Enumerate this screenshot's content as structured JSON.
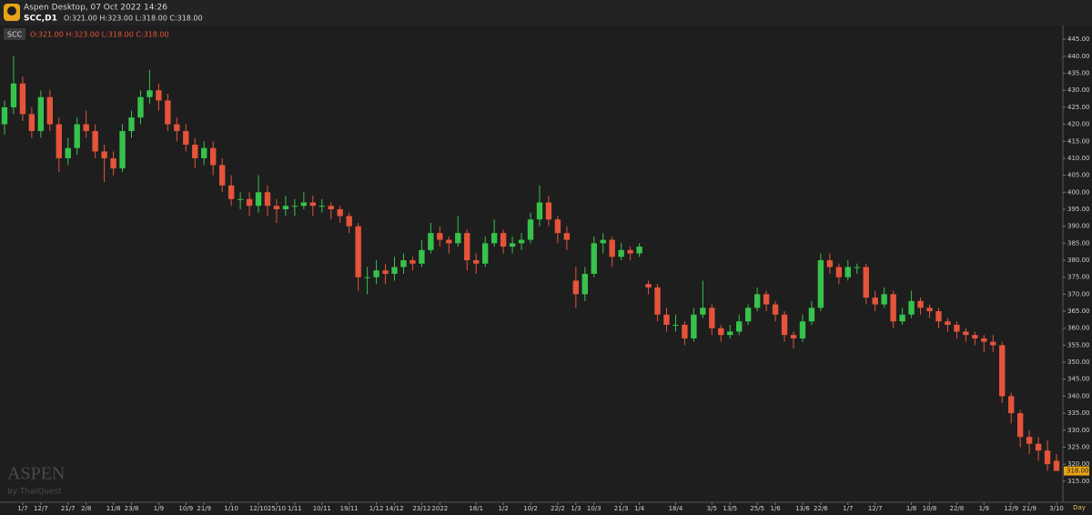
{
  "chart_data": {
    "type": "candlestick",
    "title": "Aspen Desktop, 07 Oct 2022 14:26",
    "symbol_label": "SCC,D1",
    "ohlc_label": "O:321.00 H:323.00 L:318.00 C:318.00",
    "watermark": "ASPEN",
    "watermark_sub": "by ThaiQuest",
    "period": "Day",
    "up_color": "#37c24b",
    "down_color": "#e5543a",
    "current_price": {
      "value": 318,
      "label": "318.00"
    },
    "categories": [
      null,
      null,
      "1/7",
      null,
      "12/7",
      null,
      null,
      "21/7",
      null,
      "2/8",
      null,
      null,
      "11/8",
      null,
      "23/8",
      null,
      null,
      "1/9",
      null,
      null,
      "10/9",
      null,
      "21/9",
      null,
      null,
      "1/10",
      null,
      null,
      "12/10",
      null,
      "25/10",
      null,
      "1/11",
      null,
      null,
      "10/11",
      null,
      null,
      "19/11",
      null,
      null,
      "1/12",
      null,
      "14/12",
      null,
      null,
      "23/12",
      null,
      "2022",
      null,
      null,
      null,
      "18/1",
      null,
      null,
      "1/2",
      null,
      null,
      "10/2",
      null,
      null,
      "22/2",
      null,
      "1/3",
      null,
      "10/3",
      null,
      null,
      "21/3",
      null,
      "1/4",
      null,
      null,
      null,
      "18/4",
      null,
      null,
      null,
      "3/5",
      null,
      "13/5",
      null,
      null,
      "25/5",
      null,
      "1/6",
      null,
      null,
      "13/6",
      null,
      "22/6",
      null,
      null,
      "1/7",
      null,
      null,
      "12/7",
      null,
      null,
      null,
      "1/8",
      null,
      "10/8",
      null,
      null,
      "22/8",
      null,
      null,
      "1/9",
      null,
      null,
      "12/9",
      null,
      "21/9",
      null,
      null,
      "3/10"
    ],
    "series": [
      {
        "name": "SCC",
        "open": [
          420,
          425,
          432,
          423,
          418,
          428,
          420,
          410,
          413,
          420,
          418,
          412,
          410,
          407,
          418,
          422,
          428,
          430,
          427,
          420,
          418,
          414,
          410,
          413,
          408,
          402,
          398,
          398,
          396,
          400,
          396,
          395,
          396,
          396,
          397,
          396,
          396,
          395,
          393,
          390,
          375,
          375,
          377,
          376,
          378,
          380,
          379,
          383,
          388,
          386,
          385,
          388,
          380,
          379,
          385,
          388,
          384,
          385,
          386,
          392,
          397,
          392,
          388,
          374,
          370,
          376,
          385,
          386,
          381,
          383,
          382,
          373,
          372,
          364,
          361,
          361,
          357,
          364,
          366,
          360,
          358,
          359,
          362,
          366,
          370,
          367,
          364,
          358,
          357,
          362,
          366,
          380,
          378,
          375,
          378,
          378,
          369,
          367,
          370,
          362,
          364,
          368,
          366,
          365,
          362,
          361,
          359,
          358,
          357,
          356,
          355,
          340,
          335,
          328,
          326,
          324,
          321
        ],
        "high": [
          427,
          440,
          434,
          425,
          430,
          430,
          422,
          416,
          422,
          424,
          420,
          414,
          412,
          420,
          424,
          430,
          436,
          432,
          429,
          422,
          420,
          416,
          415,
          415,
          410,
          405,
          400,
          400,
          405,
          402,
          398,
          399,
          398,
          400,
          399,
          398,
          397,
          396,
          394,
          391,
          378,
          380,
          379,
          381,
          382,
          381,
          386,
          391,
          390,
          387,
          393,
          389,
          382,
          387,
          392,
          389,
          387,
          388,
          394,
          402,
          399,
          393,
          390,
          378,
          378,
          387,
          388,
          387,
          385,
          384,
          385,
          374,
          373,
          366,
          364,
          362,
          366,
          374,
          367,
          361,
          361,
          364,
          367,
          372,
          371,
          368,
          365,
          359,
          364,
          368,
          382,
          382,
          379,
          380,
          379,
          379,
          371,
          372,
          371,
          366,
          371,
          369,
          367,
          366,
          363,
          362,
          360,
          359,
          358,
          358,
          356,
          341,
          336,
          330,
          328,
          327,
          323
        ],
        "low": [
          417,
          423,
          421,
          416,
          416,
          418,
          406,
          408,
          411,
          416,
          410,
          403,
          405,
          406,
          416,
          420,
          426,
          424,
          418,
          415,
          412,
          407,
          408,
          405,
          400,
          396,
          395,
          393,
          394,
          393,
          391,
          393,
          393,
          395,
          393,
          394,
          392,
          391,
          388,
          371,
          370,
          373,
          373,
          374,
          376,
          377,
          378,
          382,
          384,
          382,
          384,
          377,
          376,
          378,
          384,
          382,
          382,
          383,
          385,
          390,
          390,
          385,
          383,
          366,
          368,
          375,
          382,
          378,
          380,
          380,
          381,
          370,
          362,
          359,
          359,
          355,
          356,
          363,
          358,
          356,
          357,
          358,
          361,
          365,
          365,
          362,
          356,
          354,
          356,
          361,
          365,
          376,
          373,
          374,
          376,
          367,
          365,
          366,
          360,
          361,
          363,
          364,
          363,
          360,
          359,
          357,
          356,
          355,
          353,
          353,
          338,
          332,
          325,
          323,
          321,
          318,
          318
        ],
        "close": [
          425,
          432,
          423,
          418,
          428,
          420,
          410,
          413,
          420,
          418,
          412,
          410,
          407,
          418,
          422,
          428,
          430,
          427,
          420,
          418,
          414,
          410,
          413,
          408,
          402,
          398,
          398,
          396,
          400,
          396,
          395,
          396,
          396,
          397,
          396,
          396,
          395,
          393,
          390,
          375,
          375,
          377,
          376,
          378,
          380,
          379,
          383,
          388,
          386,
          385,
          388,
          380,
          379,
          385,
          388,
          384,
          385,
          386,
          392,
          397,
          392,
          388,
          386,
          370,
          376,
          385,
          386,
          381,
          383,
          382,
          384,
          372,
          364,
          361,
          361,
          357,
          364,
          366,
          360,
          358,
          359,
          362,
          366,
          370,
          367,
          364,
          358,
          357,
          362,
          366,
          380,
          378,
          375,
          378,
          378,
          369,
          367,
          370,
          362,
          364,
          368,
          366,
          365,
          362,
          361,
          359,
          358,
          357,
          356,
          355,
          340,
          335,
          328,
          326,
          324,
          320,
          318
        ]
      }
    ],
    "ylim": [
      312,
      448
    ],
    "yticks": [
      {
        "value": 445,
        "label": "445.00"
      },
      {
        "value": 440,
        "label": "440.00"
      },
      {
        "value": 435,
        "label": "435.00"
      },
      {
        "value": 430,
        "label": "430.00"
      },
      {
        "value": 425,
        "label": "425.00"
      },
      {
        "value": 420,
        "label": "420.00"
      },
      {
        "value": 415,
        "label": "415.00"
      },
      {
        "value": 410,
        "label": "410.00"
      },
      {
        "value": 405,
        "label": "405.00"
      },
      {
        "value": 400,
        "label": "400.00"
      },
      {
        "value": 395,
        "label": "395.00"
      },
      {
        "value": 390,
        "label": "390.00"
      },
      {
        "value": 385,
        "label": "385.00"
      },
      {
        "value": 380,
        "label": "380.00"
      },
      {
        "value": 375,
        "label": "375.00"
      },
      {
        "value": 370,
        "label": "370.00"
      },
      {
        "value": 365,
        "label": "365.00"
      },
      {
        "value": 360,
        "label": "360.00"
      },
      {
        "value": 355,
        "label": "355.00"
      },
      {
        "value": 350,
        "label": "350.00"
      },
      {
        "value": 345,
        "label": "345.00"
      },
      {
        "value": 340,
        "label": "340.00"
      },
      {
        "value": 335,
        "label": "335.00"
      },
      {
        "value": 330,
        "label": "330.00"
      },
      {
        "value": 325,
        "label": "325.00"
      },
      {
        "value": 320,
        "label": "320.00"
      },
      {
        "value": 315,
        "label": "315.00"
      }
    ]
  }
}
